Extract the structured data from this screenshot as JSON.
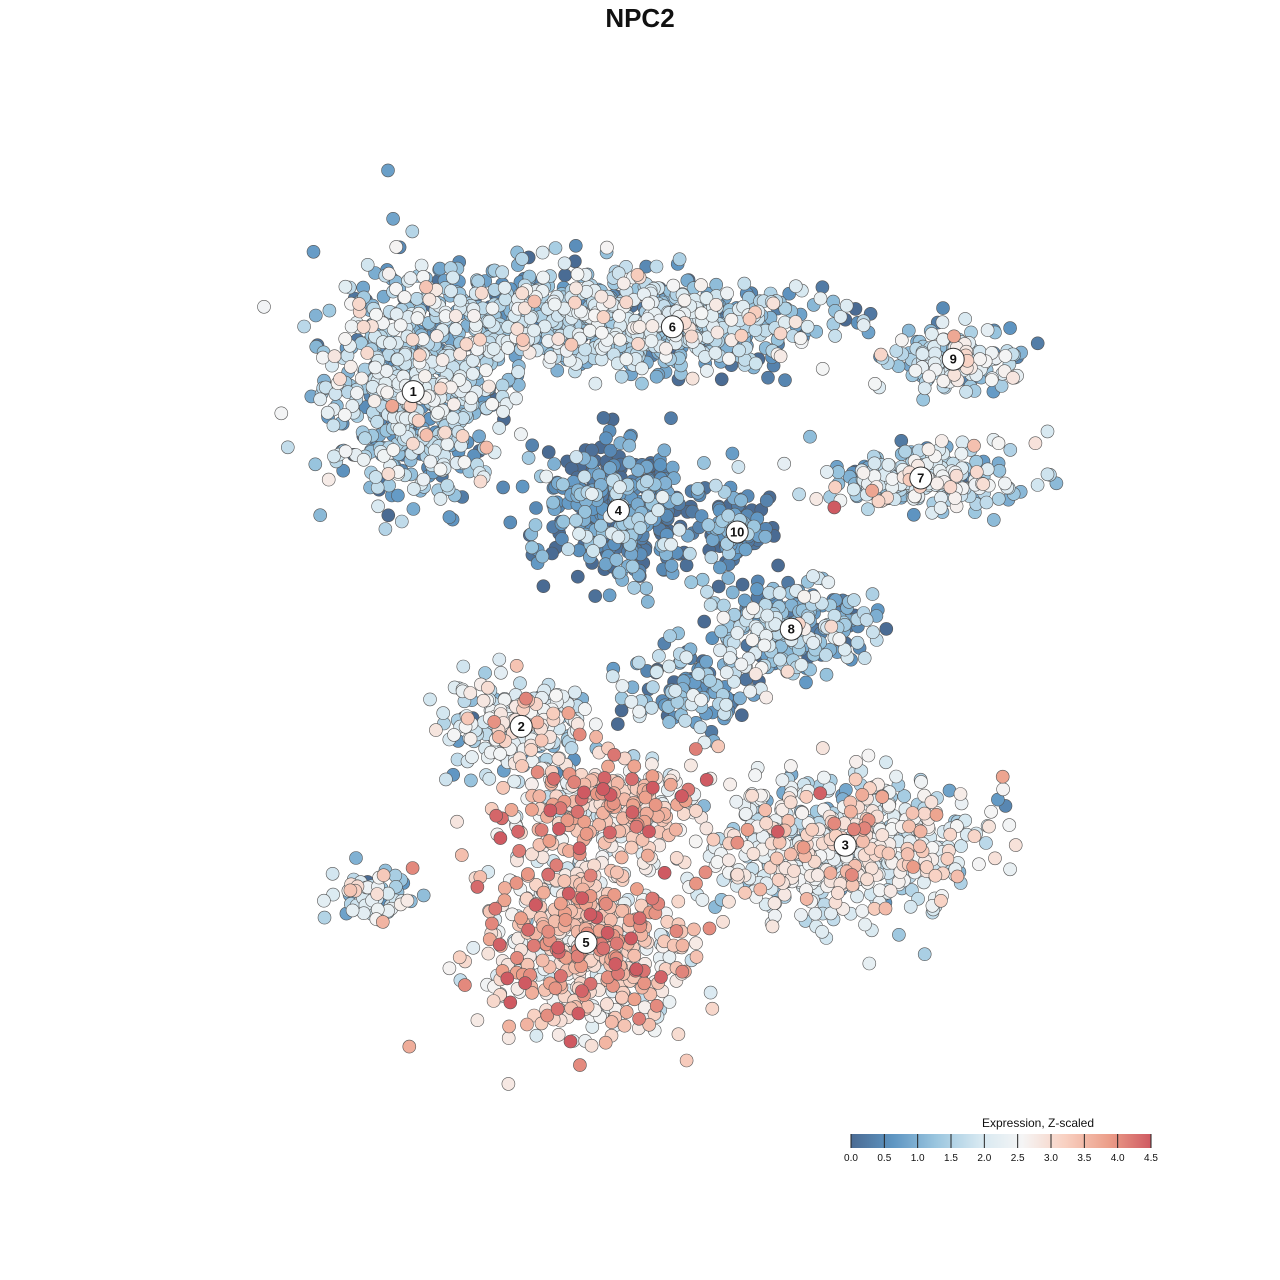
{
  "chart_data": {
    "type": "scatter",
    "title": "NPC2",
    "legend": {
      "title": "Expression, Z-scaled",
      "ticks": [
        "0.0",
        "0.5",
        "1.0",
        "1.5",
        "2.0",
        "2.5",
        "3.0",
        "3.5",
        "4.0",
        "4.5"
      ],
      "range": [
        0,
        4.5
      ],
      "colors": [
        "#4a6b93",
        "#5f96c3",
        "#9bc6df",
        "#d6e8f1",
        "#f5f5f5",
        "#f8d0c1",
        "#ec9f8a",
        "#cf5a62"
      ],
      "placement": "bottom-right"
    },
    "clusters": [
      {
        "label": "1",
        "x": 0.29,
        "y": 0.73,
        "value": 1.4
      },
      {
        "label": "2",
        "x": 0.39,
        "y": 0.42,
        "value": 2.0
      },
      {
        "label": "3",
        "x": 0.69,
        "y": 0.31,
        "value": 2.2
      },
      {
        "label": "4",
        "x": 0.48,
        "y": 0.62,
        "value": 0.4
      },
      {
        "label": "5",
        "x": 0.45,
        "y": 0.22,
        "value": 3.0
      },
      {
        "label": "6",
        "x": 0.53,
        "y": 0.79,
        "value": 1.3
      },
      {
        "label": "7",
        "x": 0.76,
        "y": 0.65,
        "value": 1.7
      },
      {
        "label": "8",
        "x": 0.64,
        "y": 0.51,
        "value": 1.2
      },
      {
        "label": "9",
        "x": 0.79,
        "y": 0.76,
        "value": 1.6
      },
      {
        "label": "10",
        "x": 0.59,
        "y": 0.6,
        "value": 0.3
      }
    ],
    "xlim": [
      0,
      1
    ],
    "ylim": [
      0,
      1
    ],
    "xlabel": "",
    "ylabel": "",
    "grid": false
  }
}
